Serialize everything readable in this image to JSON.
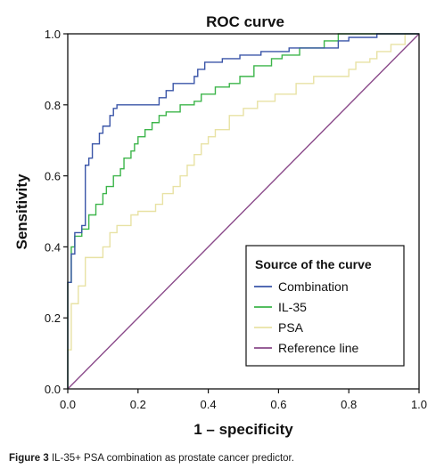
{
  "chart_data": {
    "type": "line",
    "title": "ROC curve",
    "xlabel": "1 – specificity",
    "ylabel": "Sensitivity",
    "xlim": [
      0,
      1
    ],
    "ylim": [
      0,
      1
    ],
    "xticks": [
      "0.0",
      "0.2",
      "0.4",
      "0.6",
      "0.8",
      "1.0"
    ],
    "yticks": [
      "0.0",
      "0.2",
      "0.4",
      "0.6",
      "0.8",
      "1.0"
    ],
    "grid": false,
    "legend_title": "Source of the curve",
    "legend_position": "bottom-right",
    "series": [
      {
        "name": "Combination",
        "color": "#3a55a8",
        "points": [
          [
            0,
            0
          ],
          [
            0,
            0.3
          ],
          [
            0.01,
            0.3
          ],
          [
            0.01,
            0.38
          ],
          [
            0.02,
            0.38
          ],
          [
            0.02,
            0.44
          ],
          [
            0.04,
            0.44
          ],
          [
            0.04,
            0.46
          ],
          [
            0.05,
            0.46
          ],
          [
            0.05,
            0.63
          ],
          [
            0.06,
            0.63
          ],
          [
            0.06,
            0.65
          ],
          [
            0.07,
            0.65
          ],
          [
            0.07,
            0.69
          ],
          [
            0.09,
            0.69
          ],
          [
            0.09,
            0.72
          ],
          [
            0.1,
            0.72
          ],
          [
            0.1,
            0.74
          ],
          [
            0.12,
            0.74
          ],
          [
            0.12,
            0.77
          ],
          [
            0.13,
            0.77
          ],
          [
            0.13,
            0.79
          ],
          [
            0.14,
            0.79
          ],
          [
            0.14,
            0.8
          ],
          [
            0.26,
            0.8
          ],
          [
            0.26,
            0.82
          ],
          [
            0.28,
            0.82
          ],
          [
            0.28,
            0.84
          ],
          [
            0.3,
            0.84
          ],
          [
            0.3,
            0.86
          ],
          [
            0.36,
            0.86
          ],
          [
            0.36,
            0.88
          ],
          [
            0.37,
            0.88
          ],
          [
            0.37,
            0.9
          ],
          [
            0.39,
            0.9
          ],
          [
            0.39,
            0.92
          ],
          [
            0.44,
            0.92
          ],
          [
            0.44,
            0.93
          ],
          [
            0.49,
            0.93
          ],
          [
            0.49,
            0.94
          ],
          [
            0.55,
            0.94
          ],
          [
            0.55,
            0.95
          ],
          [
            0.63,
            0.95
          ],
          [
            0.63,
            0.96
          ],
          [
            0.77,
            0.96
          ],
          [
            0.77,
            0.98
          ],
          [
            0.8,
            0.98
          ],
          [
            0.8,
            0.99
          ],
          [
            0.88,
            0.99
          ],
          [
            0.88,
            1.0
          ],
          [
            1.0,
            1.0
          ]
        ]
      },
      {
        "name": "IL-35",
        "color": "#3cb54a",
        "points": [
          [
            0,
            0
          ],
          [
            0,
            0.3
          ],
          [
            0.01,
            0.3
          ],
          [
            0.01,
            0.4
          ],
          [
            0.02,
            0.4
          ],
          [
            0.02,
            0.43
          ],
          [
            0.04,
            0.43
          ],
          [
            0.04,
            0.45
          ],
          [
            0.06,
            0.45
          ],
          [
            0.06,
            0.49
          ],
          [
            0.08,
            0.49
          ],
          [
            0.08,
            0.52
          ],
          [
            0.1,
            0.52
          ],
          [
            0.1,
            0.55
          ],
          [
            0.11,
            0.55
          ],
          [
            0.11,
            0.57
          ],
          [
            0.13,
            0.57
          ],
          [
            0.13,
            0.6
          ],
          [
            0.15,
            0.6
          ],
          [
            0.15,
            0.62
          ],
          [
            0.16,
            0.62
          ],
          [
            0.16,
            0.65
          ],
          [
            0.18,
            0.65
          ],
          [
            0.18,
            0.67
          ],
          [
            0.19,
            0.67
          ],
          [
            0.19,
            0.69
          ],
          [
            0.2,
            0.69
          ],
          [
            0.2,
            0.71
          ],
          [
            0.22,
            0.71
          ],
          [
            0.22,
            0.73
          ],
          [
            0.24,
            0.73
          ],
          [
            0.24,
            0.75
          ],
          [
            0.26,
            0.75
          ],
          [
            0.26,
            0.77
          ],
          [
            0.28,
            0.77
          ],
          [
            0.28,
            0.78
          ],
          [
            0.32,
            0.78
          ],
          [
            0.32,
            0.8
          ],
          [
            0.36,
            0.8
          ],
          [
            0.36,
            0.81
          ],
          [
            0.38,
            0.81
          ],
          [
            0.38,
            0.83
          ],
          [
            0.42,
            0.83
          ],
          [
            0.42,
            0.85
          ],
          [
            0.46,
            0.85
          ],
          [
            0.46,
            0.86
          ],
          [
            0.49,
            0.86
          ],
          [
            0.49,
            0.88
          ],
          [
            0.53,
            0.88
          ],
          [
            0.53,
            0.91
          ],
          [
            0.58,
            0.91
          ],
          [
            0.58,
            0.93
          ],
          [
            0.61,
            0.93
          ],
          [
            0.61,
            0.94
          ],
          [
            0.66,
            0.94
          ],
          [
            0.66,
            0.96
          ],
          [
            0.73,
            0.96
          ],
          [
            0.73,
            0.98
          ],
          [
            0.77,
            0.98
          ],
          [
            0.77,
            1.0
          ],
          [
            1.0,
            1.0
          ]
        ]
      },
      {
        "name": "PSA",
        "color": "#e8e2a4",
        "points": [
          [
            0,
            0
          ],
          [
            0,
            0.11
          ],
          [
            0.01,
            0.11
          ],
          [
            0.01,
            0.24
          ],
          [
            0.03,
            0.24
          ],
          [
            0.03,
            0.29
          ],
          [
            0.05,
            0.29
          ],
          [
            0.05,
            0.37
          ],
          [
            0.1,
            0.37
          ],
          [
            0.1,
            0.4
          ],
          [
            0.12,
            0.4
          ],
          [
            0.12,
            0.44
          ],
          [
            0.14,
            0.44
          ],
          [
            0.14,
            0.46
          ],
          [
            0.18,
            0.46
          ],
          [
            0.18,
            0.49
          ],
          [
            0.2,
            0.49
          ],
          [
            0.2,
            0.5
          ],
          [
            0.25,
            0.5
          ],
          [
            0.25,
            0.52
          ],
          [
            0.27,
            0.52
          ],
          [
            0.27,
            0.55
          ],
          [
            0.3,
            0.55
          ],
          [
            0.3,
            0.57
          ],
          [
            0.32,
            0.57
          ],
          [
            0.32,
            0.6
          ],
          [
            0.34,
            0.6
          ],
          [
            0.34,
            0.63
          ],
          [
            0.36,
            0.63
          ],
          [
            0.36,
            0.66
          ],
          [
            0.38,
            0.66
          ],
          [
            0.38,
            0.69
          ],
          [
            0.4,
            0.69
          ],
          [
            0.4,
            0.71
          ],
          [
            0.42,
            0.71
          ],
          [
            0.42,
            0.73
          ],
          [
            0.46,
            0.73
          ],
          [
            0.46,
            0.77
          ],
          [
            0.5,
            0.77
          ],
          [
            0.5,
            0.79
          ],
          [
            0.54,
            0.79
          ],
          [
            0.54,
            0.81
          ],
          [
            0.59,
            0.81
          ],
          [
            0.59,
            0.83
          ],
          [
            0.65,
            0.83
          ],
          [
            0.65,
            0.86
          ],
          [
            0.7,
            0.86
          ],
          [
            0.7,
            0.88
          ],
          [
            0.8,
            0.88
          ],
          [
            0.8,
            0.9
          ],
          [
            0.82,
            0.9
          ],
          [
            0.82,
            0.92
          ],
          [
            0.86,
            0.92
          ],
          [
            0.86,
            0.93
          ],
          [
            0.88,
            0.93
          ],
          [
            0.88,
            0.95
          ],
          [
            0.92,
            0.95
          ],
          [
            0.92,
            0.97
          ],
          [
            0.96,
            0.97
          ],
          [
            0.96,
            1.0
          ],
          [
            1.0,
            1.0
          ]
        ]
      },
      {
        "name": "Reference line",
        "color": "#8a4a8a",
        "points": [
          [
            0,
            0
          ],
          [
            1,
            1
          ]
        ]
      }
    ]
  },
  "caption": {
    "label": "Figure 3",
    "text": "IL-35+ PSA combination as prostate cancer predictor."
  }
}
